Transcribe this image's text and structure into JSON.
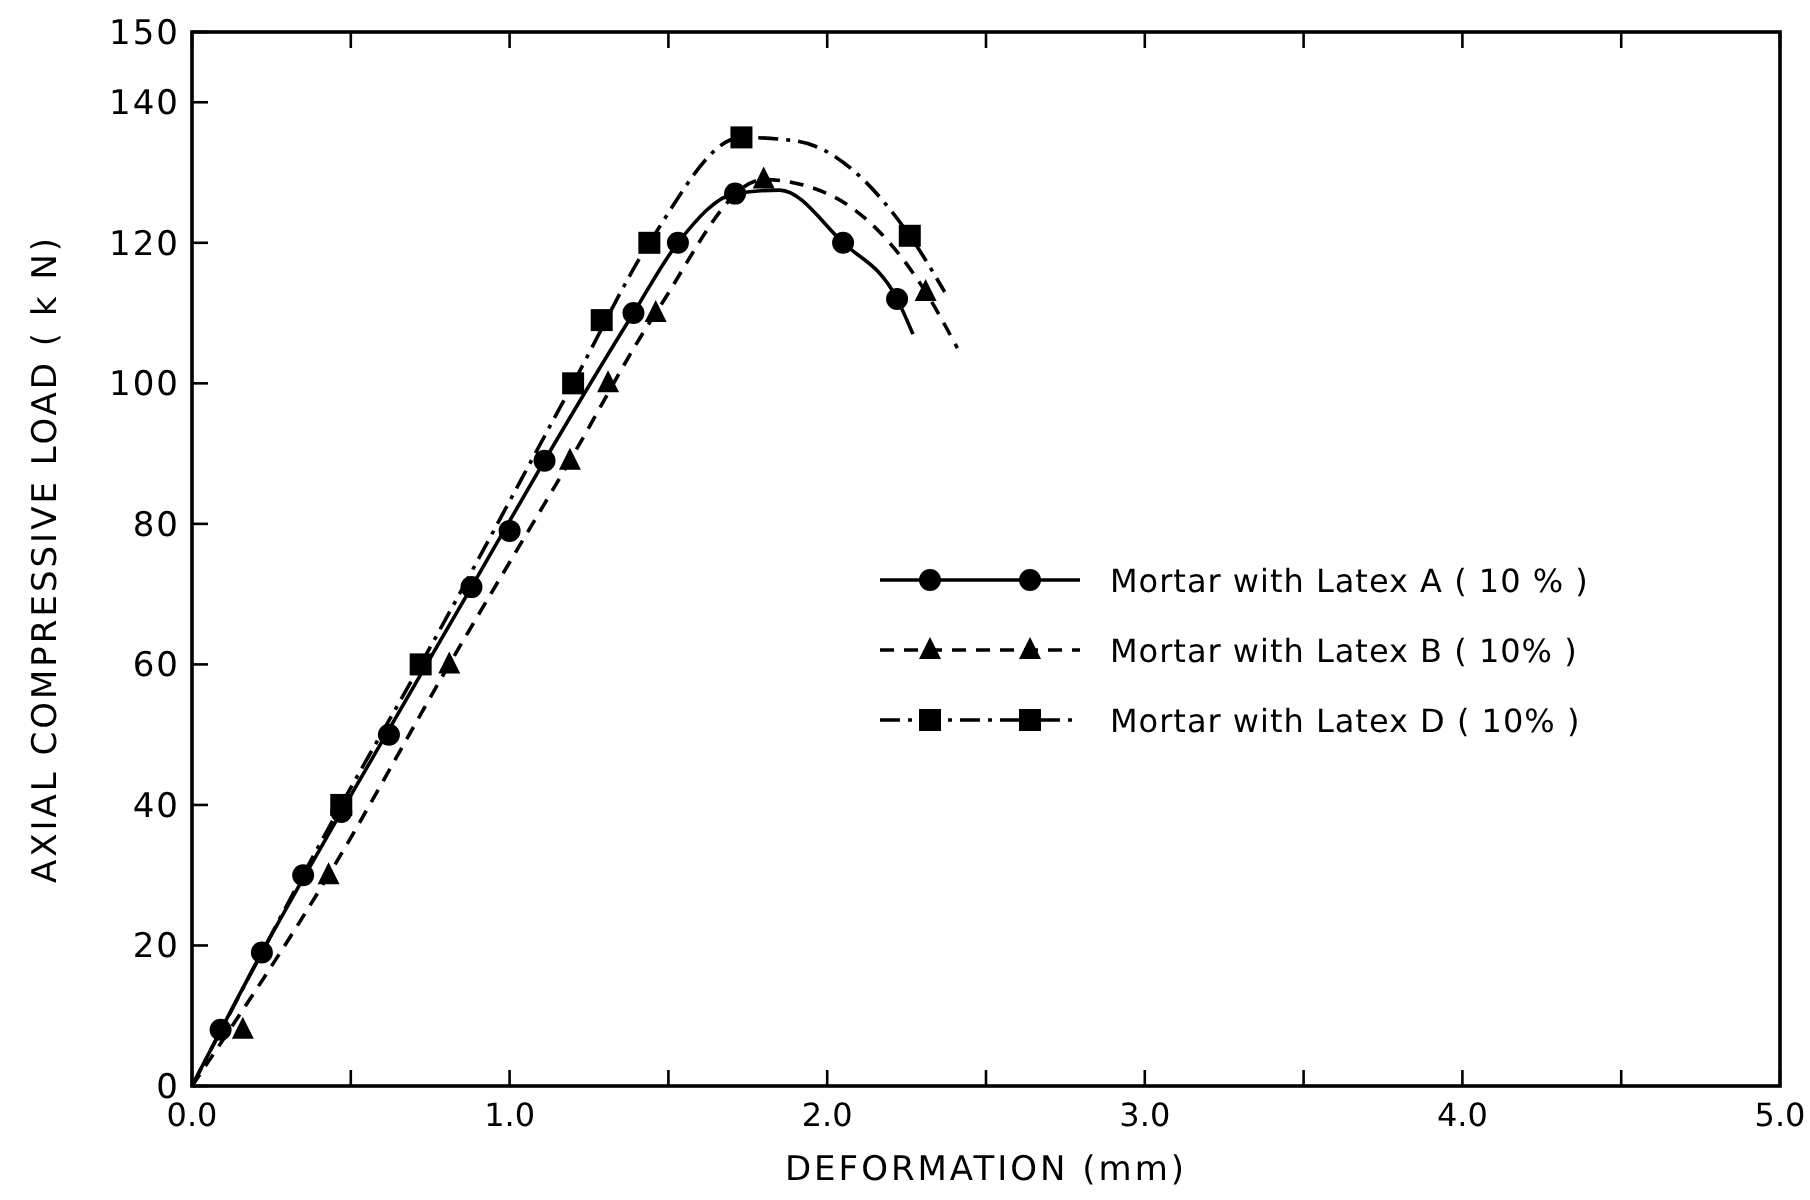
{
  "chart_data": {
    "type": "line",
    "xlabel": "DEFORMATION (mm)",
    "ylabel": "AXIAL COMPRESSIVE LOAD ( k N)",
    "xlim": [
      0,
      5
    ],
    "ylim": [
      0,
      150
    ],
    "xticks": [
      {
        "value": 0,
        "label": "0.0"
      },
      {
        "value": 0.5,
        "label": null
      },
      {
        "value": 1,
        "label": "1.0"
      },
      {
        "value": 1.5,
        "label": null
      },
      {
        "value": 2,
        "label": "2.0"
      },
      {
        "value": 2.5,
        "label": null
      },
      {
        "value": 3,
        "label": "3.0"
      },
      {
        "value": 3.5,
        "label": null
      },
      {
        "value": 4,
        "label": "4.0"
      },
      {
        "value": 4.5,
        "label": null
      },
      {
        "value": 5,
        "label": "5.0"
      }
    ],
    "yticks": [
      0,
      20,
      40,
      60,
      80,
      100,
      120,
      140,
      150
    ],
    "grid": false,
    "legend": "right",
    "series": [
      {
        "color": "#000000",
        "line_style": "solid",
        "marker": "none",
        "x": [
          0,
          0.22,
          0.47,
          0.88,
          1.11,
          1.39,
          1.53,
          1.71,
          1.85,
          2.05,
          2.22,
          2.27
        ],
        "values": [
          0,
          19,
          39,
          71,
          89,
          110,
          120,
          127,
          127.5,
          120,
          112,
          107
        ]
      },
      {
        "color": "#000000",
        "line_style": "dashed",
        "marker": "none",
        "x": [
          0,
          0.43,
          0.81,
          1.19,
          1.46,
          1.8,
          2.0,
          2.31,
          2.41
        ],
        "values": [
          0,
          30,
          60,
          89,
          110,
          129,
          127,
          113,
          105
        ]
      },
      {
        "color": "#000000",
        "line_style": "dashdot",
        "marker": "none",
        "x": [
          0,
          0.47,
          0.72,
          1.2,
          1.44,
          1.73,
          1.9,
          2.26,
          2.37
        ],
        "values": [
          0,
          40,
          60,
          100,
          120,
          135,
          134.5,
          121,
          113
        ]
      },
      {
        "type": "scatter",
        "name": "Mortar with Latex A ( 10 % )",
        "color": "#000000",
        "marker": "circle",
        "line_style": "solid",
        "x": [
          0.09,
          0.22,
          0.35,
          0.47,
          0.62,
          0.88,
          1.0,
          1.11,
          1.39,
          1.53,
          1.71,
          2.05,
          2.22
        ],
        "values": [
          8,
          19,
          30,
          39,
          50,
          71,
          79,
          89,
          110,
          120,
          127,
          120,
          112
        ]
      },
      {
        "type": "scatter",
        "name": "Mortar with Latex B ( 10% )",
        "color": "#000000",
        "marker": "triangle",
        "line_style": "dashed",
        "x": [
          0.16,
          0.43,
          0.81,
          1.19,
          1.31,
          1.46,
          1.8,
          2.31
        ],
        "values": [
          8,
          30,
          60,
          89,
          100,
          110,
          129,
          113
        ]
      },
      {
        "type": "scatter",
        "name": "Mortar with Latex D ( 10% )",
        "color": "#000000",
        "marker": "square",
        "line_style": "dashdot",
        "x": [
          0.47,
          0.72,
          1.2,
          1.29,
          1.44,
          1.73,
          2.26
        ],
        "values": [
          40,
          60,
          100,
          109,
          120,
          135,
          121
        ]
      }
    ]
  }
}
